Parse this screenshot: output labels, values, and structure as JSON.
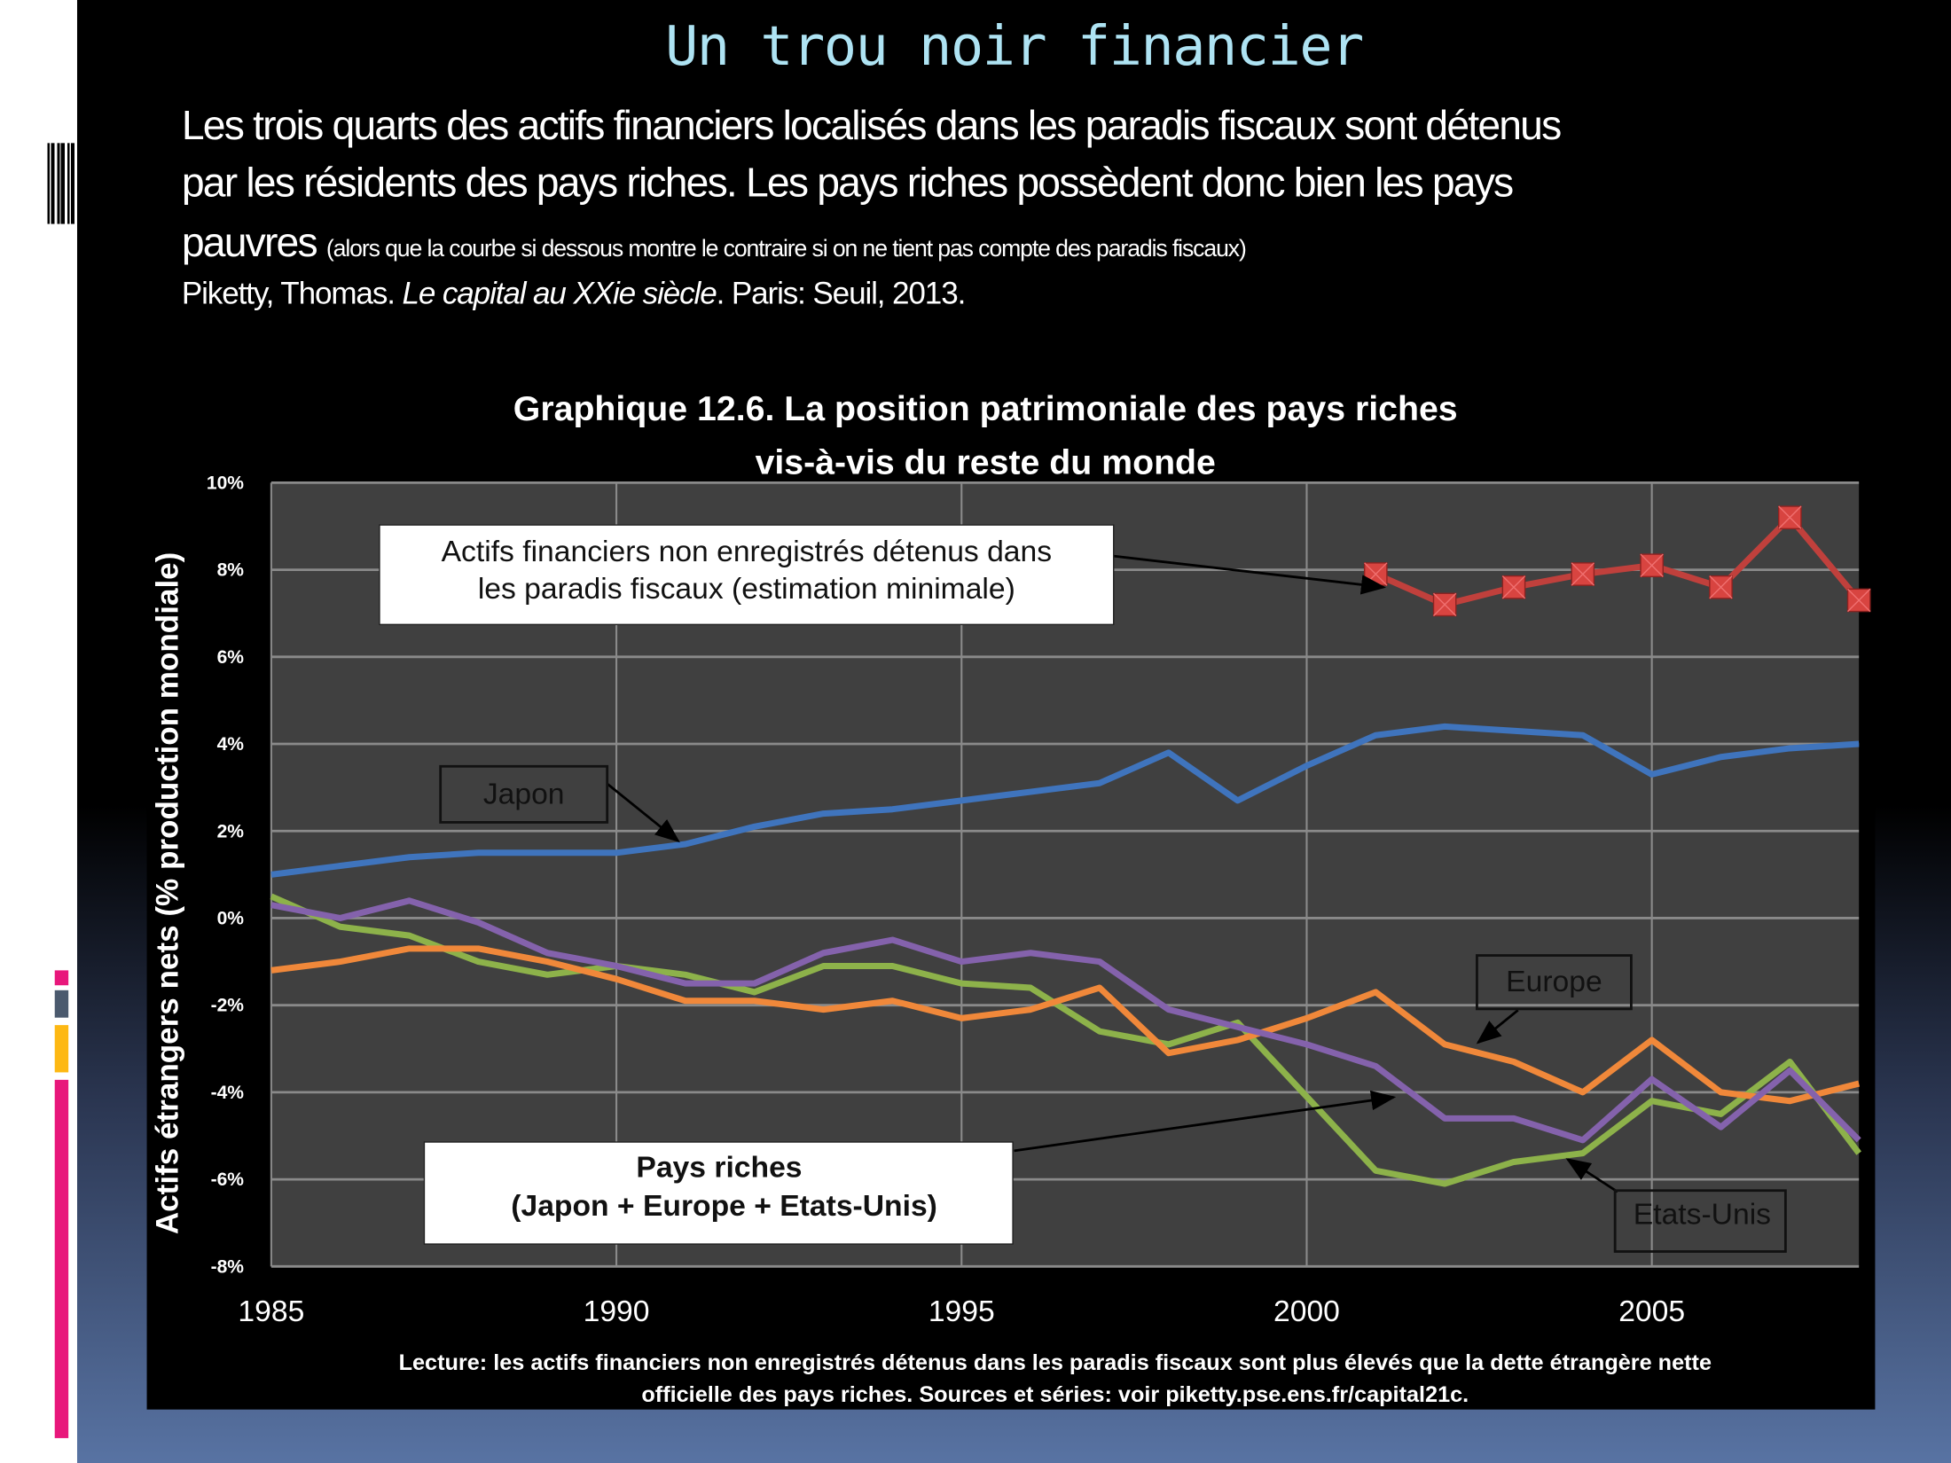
{
  "slide": {
    "title": "Un trou noir financier",
    "line1": "Les trois quarts des actifs financiers localisés dans les paradis fiscaux sont détenus",
    "line2": "par les résidents des pays riches. Les pays riches possèdent donc bien les pays",
    "line3": "pauvres",
    "line3_note": "(alors que la courbe si dessous montre le contraire si on ne tient pas compte des paradis fiscaux)",
    "cite_author": "Piketty, Thomas.",
    "cite_title": "Le capital au XXie siècle",
    "cite_pub": ". Paris: Seuil, 2013."
  },
  "colors": {
    "title": "#aee3f3",
    "offshore": "#c0403c",
    "japon": "#3f74bd",
    "europe": "#f0883a",
    "etats_unis": "#8462ac",
    "pays_riches": "#8db24a",
    "plot_bg": "#404040"
  },
  "chart_data": {
    "type": "line",
    "title_line1": "Graphique 12.6. La position patrimoniale des pays riches",
    "title_line2": "vis-à-vis du reste du monde",
    "ylabel": "Actifs étrangers nets (% production mondiale)",
    "xlabel": "",
    "xlim": [
      1985,
      2008
    ],
    "ylim": [
      -8,
      10
    ],
    "grid": true,
    "x_ticks": [
      "1985",
      "1990",
      "1995",
      "2000",
      "2005"
    ],
    "y_ticks": [
      "10%",
      "8%",
      "6%",
      "4%",
      "2%",
      "0%",
      "-2%",
      "-4%",
      "-6%",
      "-8%"
    ],
    "x": [
      1985,
      1986,
      1987,
      1988,
      1989,
      1990,
      1991,
      1992,
      1993,
      1994,
      1995,
      1996,
      1997,
      1998,
      1999,
      2000,
      2001,
      2002,
      2003,
      2004,
      2005,
      2006,
      2007,
      2008
    ],
    "series": [
      {
        "name": "Actifs financiers non enregistrés détenus dans les paradis fiscaux (estimation minimale)",
        "x": [
          2001,
          2002,
          2003,
          2004,
          2005,
          2006,
          2007,
          2008
        ],
        "values": [
          7.9,
          7.2,
          7.6,
          7.9,
          8.1,
          7.6,
          9.2,
          7.3
        ]
      },
      {
        "name": "Japon",
        "values": [
          1.0,
          1.2,
          1.4,
          1.5,
          1.5,
          1.5,
          1.7,
          2.1,
          2.4,
          2.5,
          2.7,
          2.9,
          3.1,
          3.8,
          2.7,
          3.5,
          4.2,
          4.4,
          4.3,
          4.2,
          3.3,
          3.7,
          3.9,
          4.0
        ]
      },
      {
        "name": "Europe",
        "values": [
          -1.2,
          -1.0,
          -0.7,
          -0.7,
          -1.0,
          -1.4,
          -1.9,
          -1.9,
          -2.1,
          -1.9,
          -2.3,
          -2.1,
          -1.6,
          -3.1,
          -2.8,
          -2.3,
          -1.7,
          -2.9,
          -3.3,
          -4.0,
          -2.8,
          -4.0,
          -4.2,
          -3.8
        ]
      },
      {
        "name": "Etats-Unis",
        "values": [
          0.3,
          0.0,
          0.4,
          -0.1,
          -0.8,
          -1.1,
          -1.5,
          -1.5,
          -0.8,
          -0.5,
          -1.0,
          -0.8,
          -1.0,
          -2.1,
          -2.5,
          -2.9,
          -3.4,
          -4.6,
          -4.6,
          -5.1,
          -3.7,
          -4.8,
          -3.5,
          -5.1
        ]
      },
      {
        "name": "Pays riches (Japon + Europe + Etats-Unis)",
        "values": [
          0.5,
          -0.2,
          -0.4,
          -1.0,
          -1.3,
          -1.1,
          -1.3,
          -1.7,
          -1.1,
          -1.1,
          -1.5,
          -1.6,
          -2.6,
          -2.9,
          -2.4,
          -4.1,
          -5.8,
          -6.1,
          -5.6,
          -5.4,
          -4.2,
          -4.5,
          -3.3,
          -5.4
        ]
      }
    ],
    "annotations": {
      "offshore": [
        "Actifs financiers non enregistrés détenus dans",
        "les paradis fiscaux (estimation minimale)"
      ],
      "japon": "Japon",
      "europe": "Europe",
      "etats_unis": "Etats-Unis",
      "pays_riches": [
        "Pays riches",
        "(Japon + Europe + Etats-Unis)"
      ]
    },
    "note_line1": "Lecture: les actifs financiers non enregistrés détenus dans les paradis fiscaux sont plus élevés que la dette étrangère nette",
    "note_line2": "officielle des pays riches. Sources et séries: voir piketty.pse.ens.fr/capital21c."
  }
}
